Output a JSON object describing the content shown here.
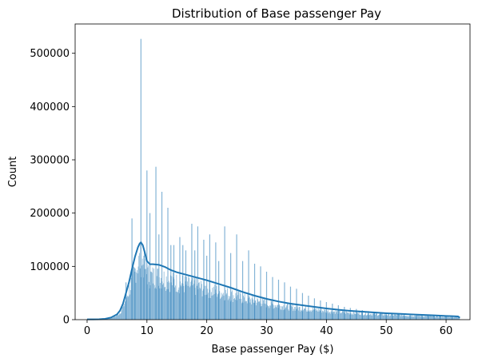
{
  "chart_data": {
    "type": "histogram",
    "title": "Distribution of Base passenger Pay",
    "xlabel": "Base passenger Pay ($)",
    "ylabel": "Count",
    "xlim": [
      -2,
      64
    ],
    "ylim": [
      0,
      555000
    ],
    "x_ticks": [
      0,
      10,
      20,
      30,
      40,
      50,
      60
    ],
    "y_ticks": [
      0,
      100000,
      200000,
      300000,
      400000,
      500000
    ],
    "grid": false,
    "legend": "none",
    "bar_color": "#1f77b4",
    "bar_opacity": 0.55,
    "kde_color": "#1f77b4",
    "spikes": [
      {
        "x": 6.5,
        "y": 70000
      },
      {
        "x": 7.5,
        "y": 190000
      },
      {
        "x": 8.0,
        "y": 90000
      },
      {
        "x": 9.0,
        "y": 527000
      },
      {
        "x": 9.5,
        "y": 120000
      },
      {
        "x": 10.0,
        "y": 280000
      },
      {
        "x": 10.5,
        "y": 200000
      },
      {
        "x": 11.5,
        "y": 287000
      },
      {
        "x": 12.0,
        "y": 160000
      },
      {
        "x": 12.5,
        "y": 240000
      },
      {
        "x": 13.5,
        "y": 210000
      },
      {
        "x": 14.0,
        "y": 140000
      },
      {
        "x": 14.5,
        "y": 140000
      },
      {
        "x": 15.5,
        "y": 155000
      },
      {
        "x": 16.0,
        "y": 140000
      },
      {
        "x": 16.5,
        "y": 130000
      },
      {
        "x": 17.5,
        "y": 180000
      },
      {
        "x": 18.0,
        "y": 130000
      },
      {
        "x": 18.5,
        "y": 175000
      },
      {
        "x": 19.5,
        "y": 150000
      },
      {
        "x": 20.0,
        "y": 120000
      },
      {
        "x": 20.5,
        "y": 160000
      },
      {
        "x": 21.5,
        "y": 145000
      },
      {
        "x": 22.0,
        "y": 110000
      },
      {
        "x": 23.0,
        "y": 175000
      },
      {
        "x": 24.0,
        "y": 125000
      },
      {
        "x": 25.0,
        "y": 160000
      },
      {
        "x": 26.0,
        "y": 110000
      },
      {
        "x": 27.0,
        "y": 130000
      },
      {
        "x": 28.0,
        "y": 105000
      },
      {
        "x": 29.0,
        "y": 100000
      },
      {
        "x": 30.0,
        "y": 90000
      },
      {
        "x": 31.0,
        "y": 80000
      },
      {
        "x": 32.0,
        "y": 75000
      },
      {
        "x": 33.0,
        "y": 70000
      },
      {
        "x": 34.0,
        "y": 62000
      },
      {
        "x": 35.0,
        "y": 58000
      },
      {
        "x": 36.0,
        "y": 50000
      },
      {
        "x": 37.0,
        "y": 45000
      },
      {
        "x": 38.0,
        "y": 40000
      },
      {
        "x": 39.0,
        "y": 36000
      },
      {
        "x": 40.0,
        "y": 33000
      },
      {
        "x": 41.0,
        "y": 30000
      },
      {
        "x": 42.0,
        "y": 27000
      },
      {
        "x": 43.0,
        "y": 24000
      },
      {
        "x": 44.0,
        "y": 22000
      },
      {
        "x": 45.0,
        "y": 20000
      },
      {
        "x": 46.0,
        "y": 18000
      },
      {
        "x": 47.0,
        "y": 16000
      },
      {
        "x": 48.0,
        "y": 15000
      },
      {
        "x": 49.0,
        "y": 14000
      },
      {
        "x": 50.0,
        "y": 12000
      },
      {
        "x": 51.0,
        "y": 11000
      },
      {
        "x": 52.0,
        "y": 10000
      },
      {
        "x": 53.0,
        "y": 9500
      },
      {
        "x": 54.0,
        "y": 9000
      },
      {
        "x": 55.0,
        "y": 8500
      },
      {
        "x": 56.0,
        "y": 8000
      },
      {
        "x": 57.0,
        "y": 7500
      },
      {
        "x": 58.0,
        "y": 7000
      },
      {
        "x": 59.0,
        "y": 6500
      },
      {
        "x": 60.0,
        "y": 6000
      },
      {
        "x": 61.0,
        "y": 5500
      }
    ],
    "kde": {
      "x": [
        0,
        1,
        2,
        3,
        4,
        5,
        5.5,
        6,
        6.5,
        7,
        7.5,
        8,
        8.5,
        8.8,
        9.0,
        9.3,
        9.6,
        10,
        10.5,
        11,
        12,
        13,
        14,
        15,
        16,
        17,
        18,
        19,
        20,
        22,
        24,
        26,
        28,
        30,
        32,
        34,
        36,
        38,
        40,
        42,
        44,
        46,
        48,
        50,
        52,
        54,
        56,
        58,
        60,
        61,
        62,
        62.3
      ],
      "y": [
        500,
        600,
        800,
        1500,
        4000,
        10000,
        17000,
        30000,
        50000,
        70000,
        95000,
        118000,
        136000,
        143000,
        145000,
        140000,
        128000,
        110000,
        104000,
        104000,
        103000,
        99000,
        93000,
        89000,
        86000,
        83000,
        80000,
        77000,
        74000,
        67000,
        60000,
        52000,
        45000,
        39000,
        34000,
        30000,
        27000,
        24000,
        21000,
        18500,
        16500,
        15000,
        13500,
        12000,
        11000,
        10000,
        9000,
        8000,
        7000,
        6500,
        6000,
        3500
      ]
    }
  }
}
